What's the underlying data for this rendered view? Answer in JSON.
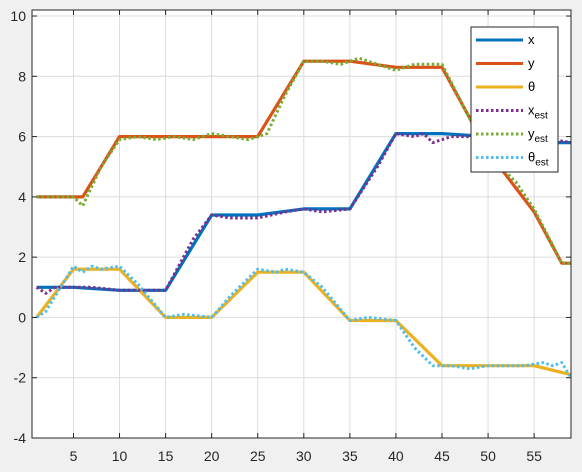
{
  "chart_data": {
    "type": "line",
    "title": "",
    "xlabel": "",
    "ylabel": "",
    "xlim": [
      0.5,
      59
    ],
    "ylim": [
      -4,
      10.2
    ],
    "xticks": [
      5,
      10,
      15,
      20,
      25,
      30,
      35,
      40,
      45,
      50,
      55
    ],
    "yticks": [
      -4,
      -2,
      0,
      2,
      4,
      6,
      8,
      10
    ],
    "grid": true,
    "legend_position": "top-right",
    "series": [
      {
        "name": "x",
        "color": "#0072BD",
        "style": "solid",
        "x": [
          1,
          5,
          10,
          15,
          20,
          25,
          30,
          35,
          40,
          45,
          50,
          55,
          59
        ],
        "y": [
          1.0,
          1.0,
          0.9,
          0.9,
          3.4,
          3.4,
          3.6,
          3.6,
          6.1,
          6.1,
          6.0,
          5.8,
          5.8
        ]
      },
      {
        "name": "y",
        "color": "#D95319",
        "style": "solid",
        "x": [
          1,
          6,
          10,
          15,
          20,
          25,
          30,
          35,
          40,
          45,
          50,
          55,
          58,
          59
        ],
        "y": [
          4.0,
          4.0,
          6.0,
          6.0,
          6.0,
          6.0,
          8.5,
          8.5,
          8.3,
          8.3,
          5.5,
          3.5,
          1.8,
          1.8
        ]
      },
      {
        "name": "θ",
        "label_main": "θ",
        "label_sub": "",
        "color": "#EDB120",
        "style": "solid",
        "x": [
          1,
          5,
          10,
          15,
          20,
          25,
          30,
          35,
          40,
          45,
          50,
          55,
          59
        ],
        "y": [
          0.0,
          1.6,
          1.6,
          0.0,
          0.0,
          1.5,
          1.5,
          -0.1,
          -0.1,
          -1.6,
          -1.6,
          -1.6,
          -1.9
        ]
      },
      {
        "name": "x_est",
        "label_main": "x",
        "label_sub": "est",
        "color": "#7E2F8E",
        "style": "dotted",
        "x": [
          1,
          2,
          3,
          5,
          7,
          10,
          15,
          18,
          20,
          22,
          25,
          28,
          30,
          32,
          35,
          38,
          40,
          42,
          43,
          44,
          46,
          50,
          52,
          55,
          57,
          59
        ],
        "y": [
          1.0,
          0.8,
          1.0,
          1.0,
          1.0,
          0.9,
          0.9,
          2.6,
          3.4,
          3.3,
          3.3,
          3.5,
          3.6,
          3.5,
          3.6,
          5.0,
          6.1,
          6.0,
          6.1,
          5.8,
          6.0,
          6.0,
          6.0,
          5.8,
          5.9,
          5.8
        ]
      },
      {
        "name": "y_est",
        "label_main": "y",
        "label_sub": "est",
        "color": "#77AC30",
        "style": "dotted",
        "x": [
          1,
          3,
          5,
          6,
          8,
          10,
          12,
          14,
          16,
          18,
          20,
          22,
          24,
          26,
          28,
          30,
          32,
          34,
          36,
          38,
          40,
          42,
          44,
          45,
          47,
          50,
          53,
          55,
          58,
          59
        ],
        "y": [
          4.0,
          4.0,
          4.0,
          3.7,
          5.0,
          5.9,
          6.0,
          5.9,
          6.0,
          5.9,
          6.1,
          6.0,
          5.9,
          6.1,
          7.4,
          8.5,
          8.5,
          8.4,
          8.6,
          8.4,
          8.2,
          8.4,
          8.4,
          8.4,
          7.2,
          5.4,
          4.5,
          3.6,
          1.8,
          1.8
        ]
      },
      {
        "name": "θ_est",
        "label_main": "θ",
        "label_sub": "est",
        "color": "#4DBEEE",
        "style": "dotted",
        "x": [
          1,
          2,
          3,
          4,
          5,
          6,
          7,
          8,
          10,
          12,
          15,
          17,
          20,
          22,
          25,
          27,
          28,
          30,
          32,
          35,
          37,
          40,
          42,
          44,
          46,
          48,
          50,
          52,
          54,
          56,
          57,
          58,
          59
        ],
        "y": [
          0.0,
          0.2,
          0.7,
          1.2,
          1.7,
          1.5,
          1.7,
          1.6,
          1.7,
          1.1,
          0.0,
          0.1,
          0.0,
          0.7,
          1.6,
          1.5,
          1.6,
          1.5,
          1.0,
          -0.1,
          0.0,
          -0.1,
          -1.0,
          -1.6,
          -1.6,
          -1.7,
          -1.6,
          -1.6,
          -1.6,
          -1.5,
          -1.6,
          -1.5,
          -2.0
        ]
      }
    ]
  }
}
